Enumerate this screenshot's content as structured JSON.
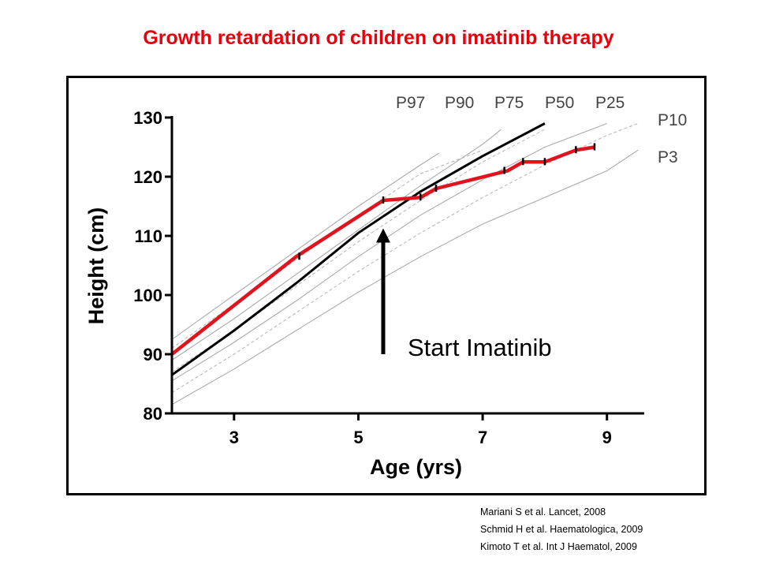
{
  "page_title": "Growth retardation of children on imatinib therapy",
  "references": [
    "Mariani S et al.  Lancet, 2008",
    "Schmid H et al. Haematologica, 2009",
    "Kimoto T et al. Int J Haematol, 2009"
  ],
  "colors": {
    "title": "#e8000b",
    "patient_line": "#e0141e",
    "median_line": "#000000",
    "solid_percentile": "#aaaaaa",
    "dashed_percentile": "#b8b8b8"
  },
  "chart_data": {
    "type": "line",
    "title": "",
    "xlabel": "Age (yrs)",
    "ylabel": "Height (cm)",
    "xlim": [
      2,
      9.6
    ],
    "ylim": [
      80,
      130
    ],
    "x_ticks": [
      3,
      5,
      7,
      9
    ],
    "y_ticks": [
      80,
      90,
      100,
      110,
      120,
      130
    ],
    "grid": false,
    "annotation": {
      "text": "Start Imatinib",
      "arrow_x": 5.4,
      "arrow_from_y": 90,
      "arrow_to_y": 111
    },
    "series": [
      {
        "name": "P97",
        "style": "solid",
        "points": [
          [
            2,
            92.5
          ],
          [
            3,
            100
          ],
          [
            4,
            107.5
          ],
          [
            5,
            115
          ],
          [
            6,
            122
          ],
          [
            6.3,
            124
          ]
        ]
      },
      {
        "name": "P90",
        "style": "dashed",
        "points": [
          [
            2,
            91
          ],
          [
            3,
            98.5
          ],
          [
            4,
            106
          ],
          [
            5,
            113.5
          ],
          [
            6,
            120.5
          ],
          [
            7,
            124.5
          ]
        ]
      },
      {
        "name": "P75",
        "style": "solid",
        "points": [
          [
            2,
            89
          ],
          [
            3,
            96
          ],
          [
            4,
            103.5
          ],
          [
            5,
            111
          ],
          [
            6,
            118.5
          ],
          [
            7,
            125.5
          ],
          [
            7.3,
            128
          ]
        ]
      },
      {
        "name": "P50",
        "style": "dashed",
        "points": [
          [
            2,
            87
          ],
          [
            3,
            94
          ],
          [
            4,
            101.5
          ],
          [
            5,
            109
          ],
          [
            6,
            116
          ],
          [
            7,
            122.5
          ],
          [
            8,
            128
          ]
        ]
      },
      {
        "name": "P25",
        "style": "solid",
        "points": [
          [
            2,
            85.5
          ],
          [
            3,
            92
          ],
          [
            4,
            99
          ],
          [
            5,
            106.5
          ],
          [
            6,
            113.5
          ],
          [
            7,
            119.5
          ],
          [
            8,
            125
          ],
          [
            9,
            129
          ]
        ]
      },
      {
        "name": "P10",
        "style": "dashed",
        "points": [
          [
            2,
            83.5
          ],
          [
            3,
            90
          ],
          [
            4,
            97
          ],
          [
            5,
            104
          ],
          [
            6,
            110.5
          ],
          [
            7,
            116.5
          ],
          [
            8,
            122
          ],
          [
            9,
            127
          ],
          [
            9.5,
            129
          ]
        ]
      },
      {
        "name": "P3",
        "style": "solid",
        "points": [
          [
            2,
            81.5
          ],
          [
            3,
            87.5
          ],
          [
            4,
            94
          ],
          [
            5,
            100.5
          ],
          [
            6,
            106.5
          ],
          [
            7,
            112
          ],
          [
            8,
            116.5
          ],
          [
            9,
            121
          ],
          [
            9.5,
            124.5
          ]
        ]
      },
      {
        "name": "",
        "style": "median",
        "points": [
          [
            2,
            86.5
          ],
          [
            3,
            94
          ],
          [
            4,
            102
          ],
          [
            5,
            110.5
          ],
          [
            6,
            117.5
          ],
          [
            7,
            123.5
          ],
          [
            8,
            129
          ]
        ]
      },
      {
        "name": "",
        "style": "patient",
        "points": [
          [
            2,
            90
          ],
          [
            4,
            106.5
          ],
          [
            5.4,
            116
          ],
          [
            6,
            116.5
          ],
          [
            6.25,
            118
          ],
          [
            7.4,
            121
          ],
          [
            7.65,
            122.5
          ],
          [
            8,
            122.5
          ],
          [
            8.5,
            124.5
          ],
          [
            8.8,
            125
          ]
        ]
      }
    ],
    "patient_ticks": [
      [
        4.05,
        106.5
      ],
      [
        5.4,
        116
      ],
      [
        6.0,
        116.5
      ],
      [
        6.25,
        118
      ],
      [
        7.35,
        121
      ],
      [
        7.65,
        122.5
      ],
      [
        8.0,
        122.5
      ],
      [
        8.5,
        124.5
      ],
      [
        8.8,
        125
      ]
    ],
    "series_labels": [
      "P97",
      "P90",
      "P75",
      "P50",
      "P25",
      "P10",
      "P3"
    ]
  }
}
